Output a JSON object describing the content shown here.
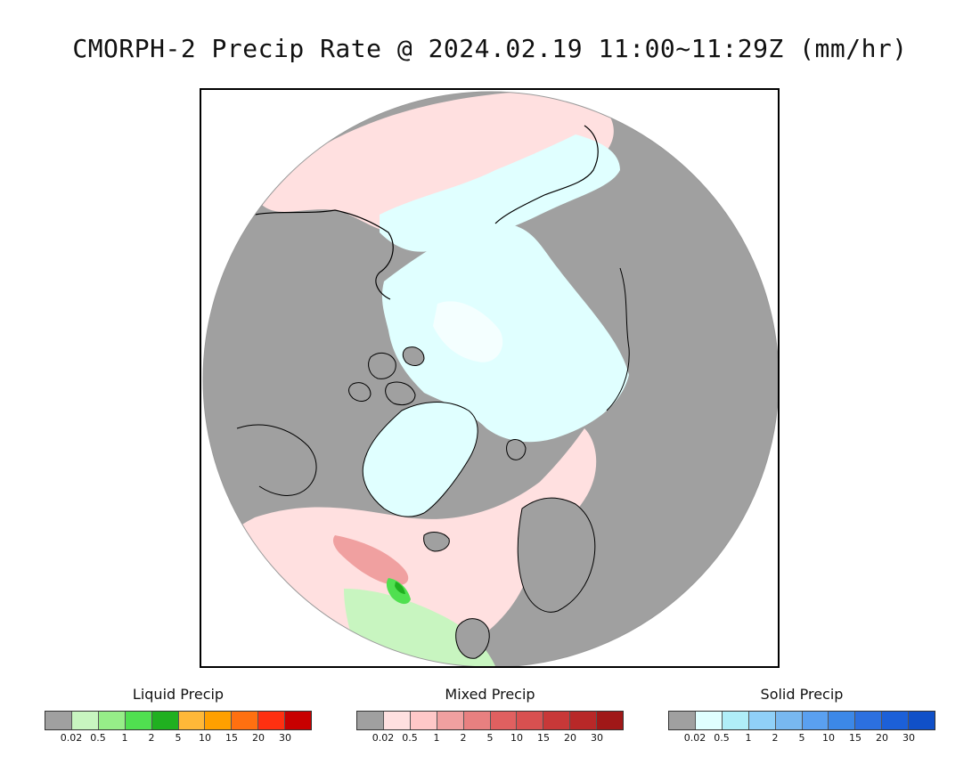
{
  "title": "CMORPH-2 Precip Rate @ 2024.02.19 11:00~11:29Z (mm/hr)",
  "map": {
    "no_precip_color": "#a0a0a0",
    "background_color": "#ffffff",
    "coastline_color": "#000000"
  },
  "legends": [
    {
      "title": "Liquid Precip",
      "colors": [
        "#a0a0a0",
        "#c8f5c0",
        "#96ee88",
        "#50e050",
        "#20b020",
        "#ffb838",
        "#ffa000",
        "#ff7010",
        "#ff3010",
        "#c80000"
      ],
      "ticks": [
        "0.02",
        "0.5",
        "1",
        "2",
        "5",
        "10",
        "15",
        "20",
        "30"
      ]
    },
    {
      "title": "Mixed Precip",
      "colors": [
        "#a0a0a0",
        "#ffe0e0",
        "#ffc8c8",
        "#f0a0a0",
        "#e88080",
        "#e06060",
        "#d85050",
        "#c83838",
        "#b82828",
        "#a01818"
      ],
      "ticks": [
        "0.02",
        "0.5",
        "1",
        "2",
        "5",
        "10",
        "15",
        "20",
        "30"
      ]
    },
    {
      "title": "Solid Precip",
      "colors": [
        "#a0a0a0",
        "#e0ffff",
        "#b0eef8",
        "#90d0f8",
        "#78b8f0",
        "#5aa0f0",
        "#3c88e8",
        "#2c70e0",
        "#1c60d8",
        "#1050c8"
      ],
      "ticks": [
        "0.02",
        "0.5",
        "1",
        "2",
        "5",
        "10",
        "15",
        "20",
        "30"
      ]
    }
  ]
}
